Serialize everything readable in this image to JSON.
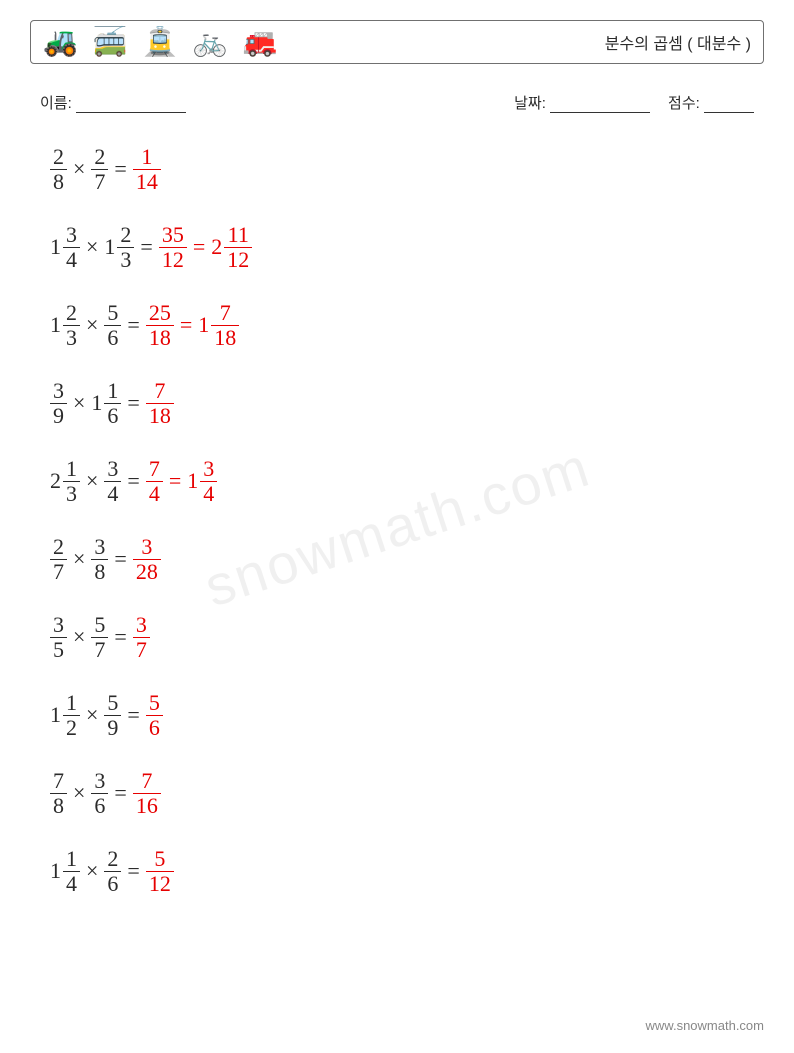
{
  "header": {
    "icons": "🚜 🚎 🚊 🚲 🚒",
    "title": "분수의 곱셈 ( 대분수 )",
    "border_color": "#707070"
  },
  "info": {
    "name_label": "이름:",
    "date_label": "날짜:",
    "score_label": "점수:"
  },
  "colors": {
    "text": "#2b2b2b",
    "answer": "#e60000",
    "background": "#ffffff"
  },
  "font_sizes": {
    "title": 16,
    "info": 15,
    "problem": 22
  },
  "watermark": "snowmath.com",
  "footer": "www.snowmath.com",
  "problems": [
    {
      "a": {
        "whole": null,
        "num": "2",
        "den": "8"
      },
      "b": {
        "whole": null,
        "num": "2",
        "den": "7"
      },
      "ans1": {
        "whole": null,
        "num": "1",
        "den": "14"
      },
      "ans2": null
    },
    {
      "a": {
        "whole": "1",
        "num": "3",
        "den": "4"
      },
      "b": {
        "whole": "1",
        "num": "2",
        "den": "3"
      },
      "ans1": {
        "whole": null,
        "num": "35",
        "den": "12"
      },
      "ans2": {
        "whole": "2",
        "num": "11",
        "den": "12"
      }
    },
    {
      "a": {
        "whole": "1",
        "num": "2",
        "den": "3"
      },
      "b": {
        "whole": null,
        "num": "5",
        "den": "6"
      },
      "ans1": {
        "whole": null,
        "num": "25",
        "den": "18"
      },
      "ans2": {
        "whole": "1",
        "num": "7",
        "den": "18"
      }
    },
    {
      "a": {
        "whole": null,
        "num": "3",
        "den": "9"
      },
      "b": {
        "whole": "1",
        "num": "1",
        "den": "6"
      },
      "ans1": {
        "whole": null,
        "num": "7",
        "den": "18"
      },
      "ans2": null
    },
    {
      "a": {
        "whole": "2",
        "num": "1",
        "den": "3"
      },
      "b": {
        "whole": null,
        "num": "3",
        "den": "4"
      },
      "ans1": {
        "whole": null,
        "num": "7",
        "den": "4"
      },
      "ans2": {
        "whole": "1",
        "num": "3",
        "den": "4"
      }
    },
    {
      "a": {
        "whole": null,
        "num": "2",
        "den": "7"
      },
      "b": {
        "whole": null,
        "num": "3",
        "den": "8"
      },
      "ans1": {
        "whole": null,
        "num": "3",
        "den": "28"
      },
      "ans2": null
    },
    {
      "a": {
        "whole": null,
        "num": "3",
        "den": "5"
      },
      "b": {
        "whole": null,
        "num": "5",
        "den": "7"
      },
      "ans1": {
        "whole": null,
        "num": "3",
        "den": "7"
      },
      "ans2": null
    },
    {
      "a": {
        "whole": "1",
        "num": "1",
        "den": "2"
      },
      "b": {
        "whole": null,
        "num": "5",
        "den": "9"
      },
      "ans1": {
        "whole": null,
        "num": "5",
        "den": "6"
      },
      "ans2": null
    },
    {
      "a": {
        "whole": null,
        "num": "7",
        "den": "8"
      },
      "b": {
        "whole": null,
        "num": "3",
        "den": "6"
      },
      "ans1": {
        "whole": null,
        "num": "7",
        "den": "16"
      },
      "ans2": null
    },
    {
      "a": {
        "whole": "1",
        "num": "1",
        "den": "4"
      },
      "b": {
        "whole": null,
        "num": "2",
        "den": "6"
      },
      "ans1": {
        "whole": null,
        "num": "5",
        "den": "12"
      },
      "ans2": null
    }
  ]
}
